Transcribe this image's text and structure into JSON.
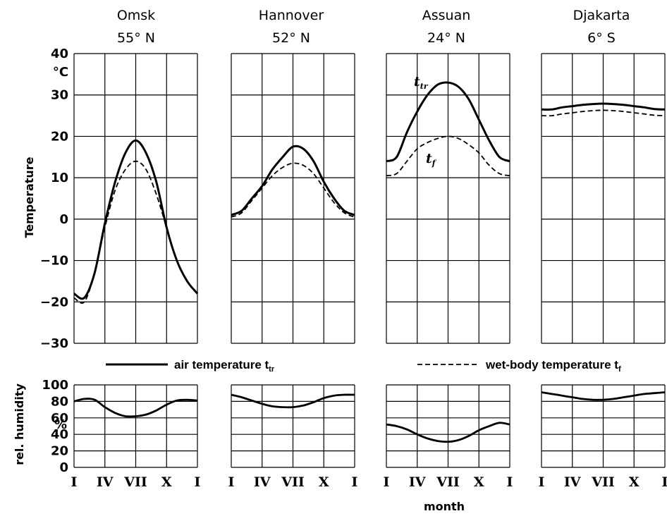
{
  "chart_data": {
    "type": "line",
    "xlabel": "month",
    "temperature_axis": {
      "label": "Temperature",
      "unit": "°C",
      "ylim": [
        -30,
        40
      ],
      "ticks": [
        {
          "value": 40,
          "label": "40"
        },
        {
          "value": 30,
          "label": "30"
        },
        {
          "value": 20,
          "label": "20"
        },
        {
          "value": 10,
          "label": "10"
        },
        {
          "value": 0,
          "label": "0"
        },
        {
          "value": -10,
          "label": "−10"
        },
        {
          "value": -20,
          "label": "−20"
        },
        {
          "value": -30,
          "label": "−30"
        }
      ]
    },
    "humidity_axis": {
      "label": "rel. humidity",
      "unit": "%",
      "ylim": [
        0,
        100
      ],
      "ticks": [
        {
          "value": 100,
          "label": "100"
        },
        {
          "value": 80,
          "label": "80"
        },
        {
          "value": 60,
          "label": "60"
        },
        {
          "value": 40,
          "label": "40"
        },
        {
          "value": 20,
          "label": "20"
        },
        {
          "value": 0,
          "label": "0"
        }
      ]
    },
    "x_ticks": [
      {
        "month": 1,
        "label": "I"
      },
      {
        "month": 4,
        "label": "IV"
      },
      {
        "month": 7,
        "label": "VII"
      },
      {
        "month": 10,
        "label": "X"
      },
      {
        "month": 13,
        "label": "I"
      }
    ],
    "legend": {
      "air": "air temperature t",
      "air_sub": "tr",
      "wet": "wet-body temperature t",
      "wet_sub": "f"
    },
    "annotations": {
      "air_label": "t",
      "air_label_sub": "tr",
      "wet_label": "t",
      "wet_label_sub": "f"
    },
    "panels": [
      {
        "city": "Omsk",
        "latitude": "55° N",
        "months": [
          1,
          2,
          3,
          4,
          5,
          6,
          7,
          8,
          9,
          10,
          11,
          12,
          13
        ],
        "air_temperature": [
          -18,
          -19,
          -13,
          -1,
          9,
          16,
          19,
          16,
          9,
          -2,
          -10,
          -15,
          -18
        ],
        "wet_body_temperature": [
          -19,
          -20,
          -13,
          -2,
          7,
          12,
          14,
          12,
          6,
          -2,
          -10,
          -15,
          -18
        ],
        "rel_humidity": [
          80,
          83,
          82,
          73,
          66,
          62,
          62,
          64,
          69,
          76,
          81,
          82,
          81
        ]
      },
      {
        "city": "Hannover",
        "latitude": "52° N",
        "months": [
          1,
          2,
          3,
          4,
          5,
          6,
          7,
          8,
          9,
          10,
          11,
          12,
          13
        ],
        "air_temperature": [
          1,
          2,
          5,
          8,
          12,
          15,
          17.5,
          17,
          14,
          9,
          5,
          2,
          1
        ],
        "wet_body_temperature": [
          0.5,
          1.5,
          4.5,
          7.5,
          10.5,
          12.5,
          13.5,
          13,
          11,
          7.5,
          4,
          1.5,
          0.5
        ],
        "rel_humidity": [
          88,
          85,
          81,
          77,
          74,
          73,
          73,
          75,
          79,
          84,
          87,
          88,
          88
        ]
      },
      {
        "city": "Assuan",
        "latitude": "24° N",
        "months": [
          1,
          2,
          3,
          4,
          5,
          6,
          7,
          8,
          9,
          10,
          11,
          12,
          13
        ],
        "air_temperature": [
          14,
          15,
          21,
          26,
          30,
          32.5,
          33,
          32,
          29,
          24,
          19,
          15,
          14
        ],
        "wet_body_temperature": [
          10.5,
          11,
          14,
          17,
          18.5,
          19.5,
          20,
          19.5,
          18,
          16,
          13,
          11,
          10.5
        ],
        "rel_humidity": [
          52,
          50,
          46,
          40,
          35,
          32,
          31,
          33,
          38,
          45,
          50,
          54,
          52
        ]
      },
      {
        "city": "Djakarta",
        "latitude": "6° S",
        "months": [
          1,
          2,
          3,
          4,
          5,
          6,
          7,
          8,
          9,
          10,
          11,
          12,
          13
        ],
        "air_temperature": [
          26.5,
          26.5,
          27,
          27.3,
          27.6,
          27.8,
          27.9,
          27.8,
          27.6,
          27.3,
          27,
          26.6,
          26.5
        ],
        "wet_body_temperature": [
          25,
          25,
          25.4,
          25.7,
          26,
          26.2,
          26.3,
          26.2,
          26,
          25.7,
          25.4,
          25.1,
          25
        ],
        "rel_humidity": [
          91,
          89,
          87,
          85,
          83,
          82,
          82,
          83,
          85,
          87,
          89,
          90,
          91
        ]
      }
    ]
  }
}
